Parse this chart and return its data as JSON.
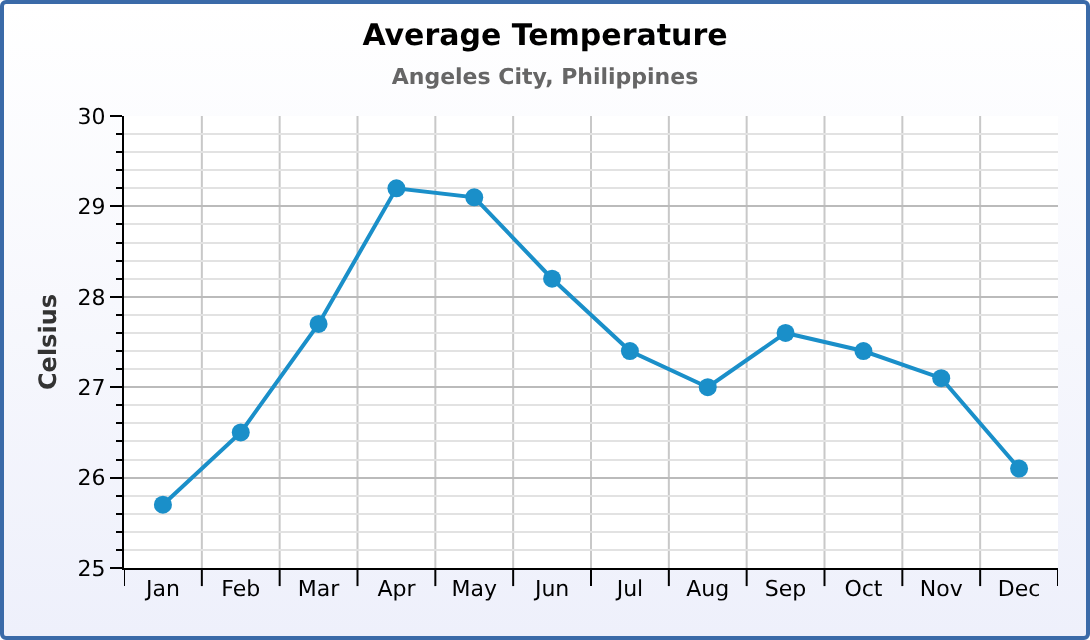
{
  "chart_data": {
    "type": "line",
    "title": "Average Temperature",
    "subtitle": "Angeles City, Philippines",
    "ylabel": "Celsius",
    "categories": [
      "Jan",
      "Feb",
      "Mar",
      "Apr",
      "May",
      "Jun",
      "Jul",
      "Aug",
      "Sep",
      "Oct",
      "Nov",
      "Dec"
    ],
    "series": [
      {
        "color": "#1a8fc9",
        "values": [
          25.7,
          26.5,
          27.7,
          29.2,
          29.1,
          28.2,
          27.4,
          27.0,
          27.6,
          27.4,
          27.1,
          26.1
        ]
      }
    ],
    "ylim": [
      25,
      30
    ],
    "yticks": [
      25,
      26,
      27,
      28,
      29,
      30
    ],
    "grid": true,
    "marker": "circle",
    "line_style": "solid"
  }
}
